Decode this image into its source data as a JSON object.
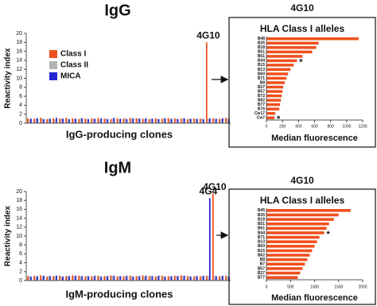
{
  "chart_data": [
    {
      "type": "bar",
      "title": "IgG",
      "x_label": "IgG-producing clones",
      "y_label": "Reactivity index",
      "categories": [
        null,
        null,
        null,
        null,
        null,
        null,
        null,
        null,
        null,
        null,
        null,
        null,
        null,
        null,
        null,
        null,
        null,
        null,
        null,
        null,
        null,
        null,
        null,
        null,
        null,
        null,
        null,
        null,
        "4G10",
        null,
        null,
        null
      ],
      "series": [
        {
          "name": "Class I",
          "color": "#f0501e",
          "values": [
            1.1,
            1.0,
            1.2,
            0.9,
            1.1,
            1.0,
            1.2,
            1.1,
            0.9,
            1.0,
            1.1,
            1.2,
            1.0,
            0.9,
            1.1,
            1.0,
            1.2,
            1.1,
            1.0,
            0.9,
            1.1,
            1.0,
            1.2,
            1.1,
            1.0,
            0.9,
            1.1,
            1.0,
            18,
            1.1,
            1.0,
            1.2
          ]
        },
        {
          "name": "Class II",
          "color": "#b4b4b4",
          "values": [
            0.9,
            1.0,
            1.1,
            1.0,
            0.9,
            1.1,
            1.0,
            0.9,
            1.1,
            1.0,
            1.0,
            0.9,
            1.1,
            1.0,
            0.9,
            1.2,
            1.0,
            1.1,
            0.9,
            1.0,
            1.0,
            1.1,
            0.9,
            1.0,
            1.1,
            1.0,
            0.9,
            1.1,
            1.0,
            1.0,
            0.9,
            1.1
          ]
        },
        {
          "name": "MICA",
          "color": "#2424d0",
          "values": [
            1.0,
            1.1,
            0.9,
            1.0,
            1.2,
            1.0,
            0.9,
            1.0,
            1.1,
            0.9,
            1.0,
            1.1,
            0.9,
            1.2,
            1.0,
            0.9,
            1.1,
            1.0,
            1.1,
            1.0,
            0.9,
            1.1,
            1.0,
            0.9,
            1.1,
            1.0,
            1.0,
            0.9,
            1.1,
            1.0,
            1.1,
            0.9
          ]
        }
      ],
      "ylim": [
        0,
        20
      ],
      "yticks": [
        0,
        2,
        4,
        6,
        8,
        10,
        12,
        14,
        16,
        18,
        20
      ],
      "legend": "upper left"
    },
    {
      "type": "barh",
      "title": "4G10",
      "subtitle": "HLA Class I alleles",
      "x_label": "Median fluorescence",
      "categories": [
        "B48",
        "B35",
        "B18",
        "B51",
        "B61",
        "B44",
        "B15",
        "B13",
        "B60",
        "B71",
        "B8",
        "B27",
        "B57",
        "B72",
        "B82",
        "B77",
        "B76",
        "Cw17",
        "Cw7"
      ],
      "values": [
        1150,
        650,
        620,
        570,
        450,
        380,
        340,
        300,
        270,
        250,
        230,
        210,
        200,
        190,
        180,
        170,
        160,
        110,
        100
      ],
      "color": "#f0501e",
      "xlim": [
        0,
        1200
      ],
      "xticks": [
        0,
        200,
        400,
        600,
        800,
        1000,
        1200
      ],
      "annotations": [
        {
          "text": "*",
          "category": "B44"
        },
        {
          "text": "*",
          "category": "Cw7"
        }
      ]
    },
    {
      "type": "bar",
      "title": "IgM",
      "x_label": "IgM-producing clones",
      "y_label": "Reactivity index",
      "categories": [
        null,
        null,
        null,
        null,
        null,
        null,
        null,
        null,
        null,
        null,
        null,
        null,
        null,
        null,
        null,
        null,
        null,
        null,
        null,
        null,
        null,
        null,
        null,
        null,
        null,
        null,
        null,
        null,
        "4G4",
        "4G10",
        null,
        null
      ],
      "series": [
        {
          "name": "Class I",
          "color": "#f0501e",
          "values": [
            1.0,
            1.1,
            1.2,
            0.9,
            1.0,
            1.1,
            1.0,
            1.2,
            1.1,
            0.9,
            1.0,
            1.1,
            1.0,
            1.2,
            0.9,
            1.0,
            1.1,
            1.0,
            1.2,
            1.0,
            0.9,
            1.1,
            1.0,
            1.1,
            1.2,
            1.0,
            0.9,
            1.0,
            1.1,
            19.5,
            1.0,
            1.1
          ]
        },
        {
          "name": "Class II",
          "color": "#b4b4b4",
          "values": [
            1.1,
            0.9,
            1.0,
            1.1,
            1.0,
            0.9,
            1.1,
            1.0,
            1.0,
            1.1,
            0.9,
            1.0,
            1.1,
            1.0,
            1.0,
            0.9,
            1.1,
            1.0,
            0.9,
            1.1,
            1.0,
            1.0,
            0.9,
            1.1,
            1.0,
            1.0,
            1.1,
            0.9,
            1.0,
            1.1,
            0.9,
            1.0
          ]
        },
        {
          "name": "MICA",
          "color": "#2424d0",
          "values": [
            0.9,
            1.0,
            1.1,
            1.0,
            1.1,
            0.9,
            1.0,
            1.1,
            1.0,
            1.0,
            1.1,
            0.9,
            1.0,
            1.1,
            1.0,
            1.1,
            0.9,
            1.0,
            1.1,
            1.0,
            1.1,
            0.9,
            1.0,
            1.0,
            1.1,
            0.9,
            1.0,
            1.1,
            18.5,
            1.0,
            1.1,
            0.9
          ]
        }
      ],
      "ylim": [
        0,
        20
      ],
      "yticks": [
        0,
        2,
        4,
        6,
        8,
        10,
        12,
        14,
        16,
        18,
        20
      ]
    },
    {
      "type": "barh",
      "title": "4G10",
      "subtitle": "HLA Class I alleles",
      "x_label": "Median fluorescence",
      "categories": [
        "B45",
        "B35",
        "B18",
        "B51",
        "B61",
        "B44",
        "B71",
        "B13",
        "B60",
        "B15",
        "B62",
        "B8",
        "B7",
        "B57",
        "B27",
        "B77"
      ],
      "values": [
        1750,
        1500,
        1400,
        1300,
        1250,
        1200,
        1100,
        1050,
        1000,
        950,
        900,
        850,
        800,
        750,
        700,
        650
      ],
      "color": "#f0501e",
      "xlim": [
        0,
        2000
      ],
      "xticks": [
        0,
        500,
        1000,
        1500,
        2000
      ],
      "annotations": [
        {
          "text": "*",
          "category": "B44"
        }
      ]
    }
  ]
}
